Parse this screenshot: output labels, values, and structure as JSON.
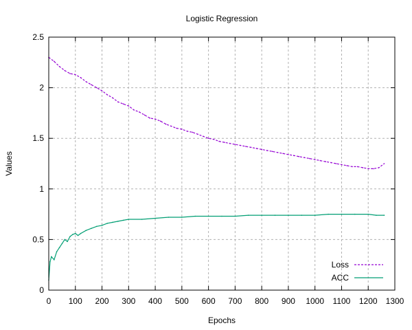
{
  "chart_data": {
    "type": "line",
    "title": "Logistic Regression",
    "xlabel": "Epochs",
    "ylabel": "Values",
    "xlim": [
      0,
      1300
    ],
    "ylim": [
      0,
      2.5
    ],
    "xticks": [
      0,
      100,
      200,
      300,
      400,
      500,
      600,
      700,
      800,
      900,
      1000,
      1100,
      1200,
      1300
    ],
    "yticks": [
      0,
      0.5,
      1,
      1.5,
      2,
      2.5
    ],
    "ytick_labels": [
      "0",
      "0.5",
      "1",
      "1.5",
      "2",
      "2.5"
    ],
    "grid": true,
    "legend_position": "bottom-right",
    "series": [
      {
        "name": "Loss",
        "color": "#9400d3",
        "style": "dashed",
        "x": [
          0,
          20,
          40,
          60,
          80,
          100,
          120,
          140,
          160,
          180,
          200,
          220,
          240,
          260,
          280,
          300,
          320,
          340,
          360,
          380,
          400,
          420,
          440,
          460,
          480,
          500,
          520,
          540,
          560,
          580,
          600,
          620,
          640,
          660,
          680,
          700,
          720,
          740,
          760,
          780,
          800,
          820,
          840,
          860,
          880,
          900,
          920,
          940,
          960,
          980,
          1000,
          1020,
          1040,
          1060,
          1080,
          1100,
          1120,
          1140,
          1160,
          1180,
          1200,
          1220,
          1240,
          1260
        ],
        "values": [
          2.3,
          2.26,
          2.21,
          2.17,
          2.14,
          2.13,
          2.1,
          2.06,
          2.03,
          2.0,
          1.97,
          1.93,
          1.9,
          1.86,
          1.84,
          1.82,
          1.78,
          1.76,
          1.73,
          1.7,
          1.69,
          1.67,
          1.64,
          1.62,
          1.6,
          1.59,
          1.57,
          1.56,
          1.54,
          1.52,
          1.5,
          1.49,
          1.47,
          1.46,
          1.45,
          1.44,
          1.43,
          1.42,
          1.41,
          1.4,
          1.39,
          1.38,
          1.37,
          1.36,
          1.35,
          1.34,
          1.33,
          1.32,
          1.31,
          1.3,
          1.29,
          1.28,
          1.27,
          1.26,
          1.25,
          1.24,
          1.23,
          1.22,
          1.22,
          1.21,
          1.2,
          1.2,
          1.21,
          1.25
        ]
      },
      {
        "name": "ACC",
        "color": "#009e73",
        "style": "solid",
        "x": [
          0,
          5,
          10,
          20,
          30,
          40,
          50,
          60,
          70,
          80,
          90,
          100,
          110,
          120,
          140,
          160,
          180,
          200,
          220,
          240,
          260,
          280,
          300,
          350,
          400,
          450,
          500,
          550,
          600,
          650,
          700,
          750,
          800,
          850,
          900,
          950,
          1000,
          1050,
          1100,
          1150,
          1200,
          1230,
          1260
        ],
        "values": [
          0.1,
          0.28,
          0.33,
          0.3,
          0.38,
          0.42,
          0.46,
          0.5,
          0.48,
          0.53,
          0.55,
          0.56,
          0.54,
          0.56,
          0.59,
          0.61,
          0.63,
          0.64,
          0.66,
          0.67,
          0.68,
          0.69,
          0.7,
          0.7,
          0.71,
          0.72,
          0.72,
          0.73,
          0.73,
          0.73,
          0.73,
          0.74,
          0.74,
          0.74,
          0.74,
          0.74,
          0.74,
          0.75,
          0.75,
          0.75,
          0.75,
          0.74,
          0.74
        ]
      }
    ]
  }
}
